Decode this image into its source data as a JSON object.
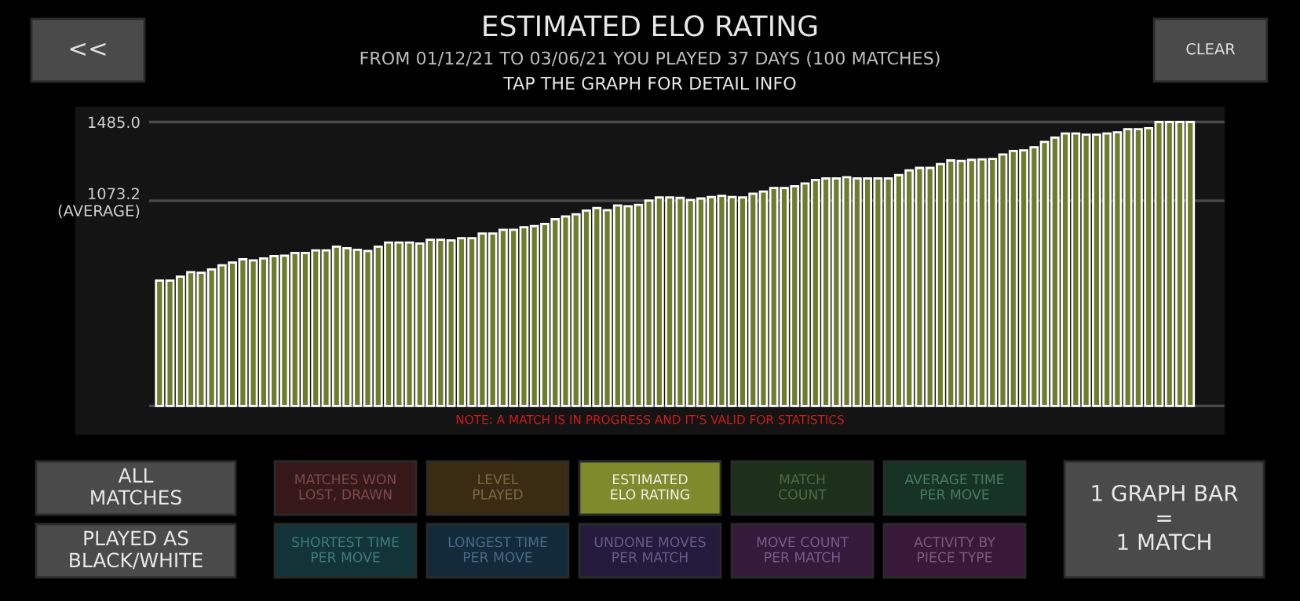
{
  "chart_data": {
    "type": "bar",
    "title": "ESTIMATED ELO RATING",
    "subtitle": "FROM 01/12/21 TO 03/06/21 YOU PLAYED 37 DAYS (100 MATCHES)",
    "categories": [
      null,
      null,
      null,
      null,
      null,
      null,
      null,
      null,
      null,
      null,
      null,
      null,
      null,
      null,
      null,
      null,
      null,
      null,
      null,
      null,
      null,
      null,
      null,
      null,
      null,
      null,
      null,
      null,
      null,
      null,
      null,
      null,
      null,
      null,
      null,
      null,
      null,
      null,
      null,
      null,
      null,
      null,
      null,
      null,
      null,
      null,
      null,
      null,
      null,
      null,
      null,
      null,
      null,
      null,
      null,
      null,
      null,
      null,
      null,
      null,
      null,
      null,
      null,
      null,
      null,
      null,
      null,
      null,
      null,
      null,
      null,
      null,
      null,
      null,
      null,
      null,
      null,
      null,
      null,
      null,
      null,
      null,
      null,
      null,
      null,
      null,
      null,
      null,
      null,
      null,
      null,
      null,
      null,
      null,
      null,
      null,
      null,
      null,
      null,
      null
    ],
    "values": [
      656,
      656,
      676,
      700,
      697,
      714,
      736,
      750,
      767,
      761,
      772,
      784,
      786,
      800,
      800,
      814,
      814,
      833,
      825,
      817,
      811,
      833,
      855,
      855,
      855,
      850,
      869,
      869,
      866,
      877,
      877,
      902,
      902,
      921,
      921,
      935,
      941,
      952,
      977,
      991,
      1002,
      1022,
      1035,
      1024,
      1049,
      1044,
      1052,
      1074,
      1091,
      1091,
      1088,
      1077,
      1085,
      1093,
      1099,
      1093,
      1091,
      1110,
      1121,
      1140,
      1140,
      1149,
      1163,
      1182,
      1190,
      1190,
      1196,
      1190,
      1190,
      1190,
      1190,
      1207,
      1232,
      1245,
      1245,
      1265,
      1284,
      1281,
      1287,
      1290,
      1292,
      1315,
      1334,
      1337,
      1353,
      1381,
      1403,
      1425,
      1425,
      1419,
      1419,
      1425,
      1431,
      1448,
      1448,
      1453,
      1485,
      1485,
      1485,
      1485
    ],
    "color": "#6e7d2b",
    "ylim": [
      -150,
      1565
    ],
    "yticks": [
      {
        "value": 0,
        "label": null
      },
      {
        "value": 1073.2,
        "label": "1073.2\n(AVERAGE)"
      },
      {
        "value": 1485,
        "label": "1485.0"
      }
    ],
    "grid": "y",
    "tick_labels": "y",
    "annotations": [
      "NOTE: A MATCH IS IN PROGRESS AND IT'S VALID FOR STATISTICS",
      "TAP THE GRAPH FOR DETAIL INFO",
      "<<",
      "CLEAR",
      "ALL\nMATCHES",
      "PLAYED AS\nBLACK/WHITE",
      "MATCHES WON\nLOST, DRAWN",
      "LEVEL\nPLAYED",
      "ESTIMATED\nELO RATING",
      "MATCH\nCOUNT",
      "AVERAGE TIME\nPER MOVE",
      "SHORTEST TIME\nPER MOVE",
      "LONGEST TIME\nPER MOVE",
      "UNDONE MOVES\nPER MATCH",
      "MOVE COUNT\nPER MATCH",
      "ACTIVITY BY\nPIECE TYPE",
      "1 GRAPH BAR\n=\n1 MATCH"
    ]
  }
}
